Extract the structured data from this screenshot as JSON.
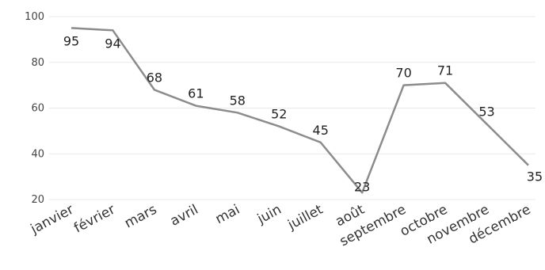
{
  "chart_data": {
    "type": "line",
    "categories": [
      "janvier",
      "février",
      "mars",
      "avril",
      "mai",
      "juin",
      "juillet",
      "août",
      "septembre",
      "octobre",
      "novembre",
      "décembre"
    ],
    "series": [
      {
        "values": [
          95,
          94,
          68,
          61,
          58,
          52,
          45,
          23,
          70,
          71,
          53,
          35
        ]
      }
    ],
    "y_ticks": [
      20,
      40,
      60,
      80,
      100
    ],
    "ylim": [
      20,
      100
    ],
    "grid": true,
    "line_color": "#8c8c8c",
    "data_labels": true
  }
}
